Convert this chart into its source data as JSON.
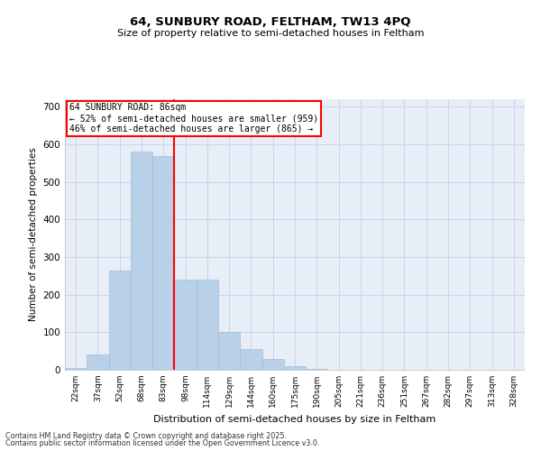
{
  "title_line1": "64, SUNBURY ROAD, FELTHAM, TW13 4PQ",
  "title_line2": "Size of property relative to semi-detached houses in Feltham",
  "xlabel": "Distribution of semi-detached houses by size in Feltham",
  "ylabel": "Number of semi-detached properties",
  "categories": [
    "22sqm",
    "37sqm",
    "52sqm",
    "68sqm",
    "83sqm",
    "98sqm",
    "114sqm",
    "129sqm",
    "144sqm",
    "160sqm",
    "175sqm",
    "190sqm",
    "205sqm",
    "221sqm",
    "236sqm",
    "251sqm",
    "267sqm",
    "282sqm",
    "297sqm",
    "313sqm",
    "328sqm"
  ],
  "values": [
    5,
    40,
    265,
    580,
    570,
    240,
    240,
    100,
    55,
    30,
    10,
    2,
    0,
    0,
    0,
    0,
    0,
    0,
    0,
    0,
    0
  ],
  "bar_color": "#b8d0e8",
  "bar_edge_color": "#a0bcd8",
  "property_line_bin": 4,
  "property_size": "86sqm",
  "pct_smaller": 52,
  "n_smaller": 959,
  "pct_larger": 46,
  "n_larger": 865,
  "annotation_box_color": "#cc0000",
  "ylim": [
    0,
    720
  ],
  "yticks": [
    0,
    100,
    200,
    300,
    400,
    500,
    600,
    700
  ],
  "grid_color": "#c8d4e8",
  "background_color": "#e8eef8",
  "footer_line1": "Contains HM Land Registry data © Crown copyright and database right 2025.",
  "footer_line2": "Contains public sector information licensed under the Open Government Licence v3.0."
}
